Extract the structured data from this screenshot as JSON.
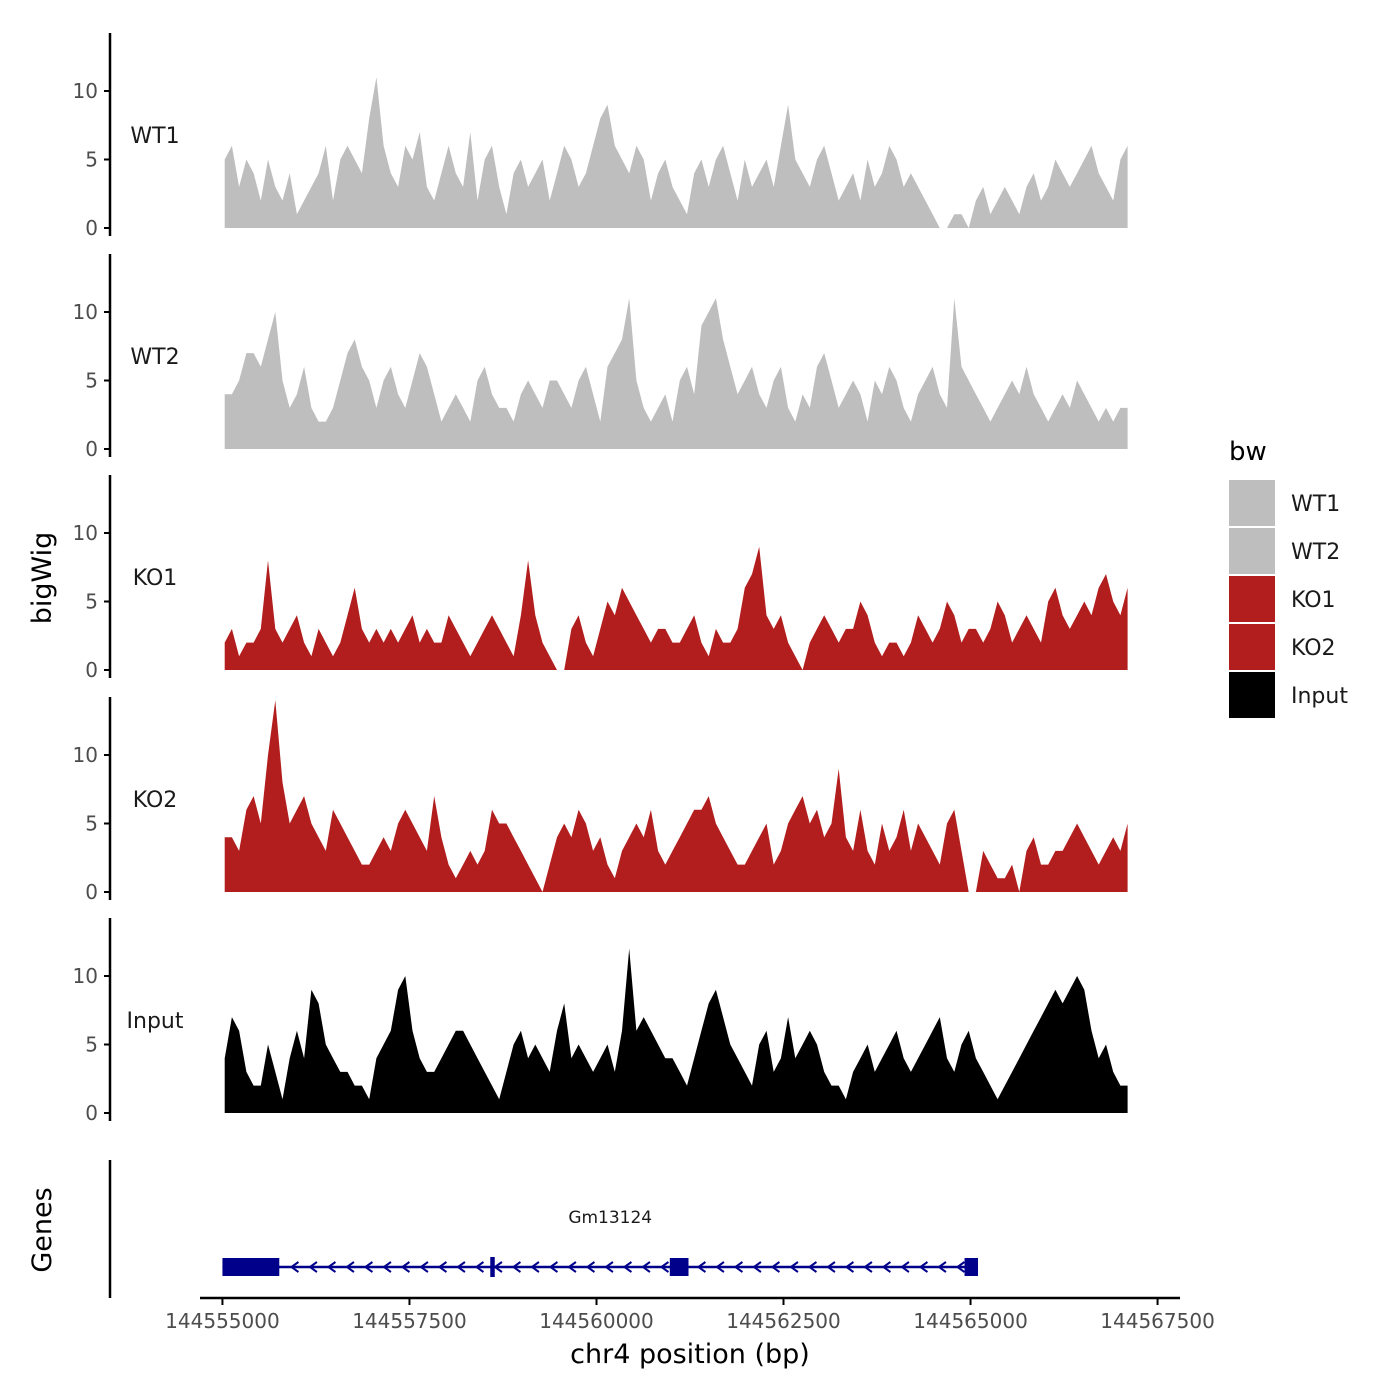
{
  "chart_data": {
    "type": "area",
    "title": "",
    "xlabel": "chr4 position (bp)",
    "ylabel": "bigWig",
    "genes_label": "Genes",
    "chromosome": "chr4",
    "xlim": [
      144554700,
      144567800
    ],
    "ylim": [
      0,
      14.2
    ],
    "x_ticks": [
      144555000,
      144557500,
      144560000,
      144562500,
      144565000,
      144567500
    ],
    "x_tick_labels": [
      "144555000",
      "144557500",
      "144560000",
      "144562500",
      "144565000",
      "144567500"
    ],
    "y_ticks": [
      0,
      5,
      10
    ],
    "y_tick_labels": [
      "0",
      "5",
      "10"
    ],
    "legend": {
      "title": "bw",
      "position": "right",
      "entries": [
        {
          "label": "WT1",
          "color": "#bebebe"
        },
        {
          "label": "WT2",
          "color": "#bebebe"
        },
        {
          "label": "KO1",
          "color": "#b21e1e"
        },
        {
          "label": "KO2",
          "color": "#b21e1e"
        },
        {
          "label": "Input",
          "color": "#000000"
        }
      ]
    },
    "x_start": 144555030,
    "x_end": 144567100,
    "series": [
      {
        "name": "WT1",
        "color": "#bebebe",
        "values": [
          5,
          6,
          3,
          5,
          4,
          2,
          5,
          3,
          2,
          4,
          1,
          2,
          3,
          4,
          6,
          2,
          5,
          6,
          5,
          4,
          8,
          11,
          6,
          4,
          3,
          6,
          5,
          7,
          3,
          2,
          4,
          6,
          4,
          3,
          7,
          2,
          5,
          6,
          3,
          1,
          4,
          5,
          3,
          4,
          5,
          2,
          4,
          6,
          5,
          3,
          4,
          6,
          8,
          9,
          6,
          5,
          4,
          6,
          5,
          2,
          4,
          5,
          3,
          2,
          1,
          4,
          5,
          3,
          5,
          6,
          4,
          2,
          5,
          3,
          4,
          5,
          3,
          6,
          9,
          5,
          4,
          3,
          5,
          6,
          4,
          2,
          3,
          4,
          2,
          5,
          3,
          4,
          6,
          5,
          3,
          4,
          3,
          2,
          1,
          0,
          0,
          1,
          1,
          0,
          2,
          3,
          1,
          2,
          3,
          2,
          1,
          3,
          4,
          2,
          3,
          5,
          4,
          3,
          4,
          5,
          6,
          4,
          3,
          2,
          5,
          6
        ]
      },
      {
        "name": "WT2",
        "color": "#bebebe",
        "values": [
          4,
          4,
          5,
          7,
          7,
          6,
          8,
          10,
          5,
          3,
          4,
          6,
          3,
          2,
          2,
          3,
          5,
          7,
          8,
          6,
          5,
          3,
          5,
          6,
          4,
          3,
          5,
          7,
          6,
          4,
          2,
          3,
          4,
          3,
          2,
          5,
          6,
          4,
          3,
          3,
          2,
          4,
          5,
          4,
          3,
          5,
          5,
          4,
          3,
          5,
          6,
          4,
          2,
          6,
          7,
          8,
          11,
          5,
          3,
          2,
          3,
          4,
          2,
          5,
          6,
          4,
          9,
          10,
          11,
          8,
          6,
          4,
          5,
          6,
          4,
          3,
          5,
          6,
          3,
          2,
          4,
          3,
          6,
          7,
          5,
          3,
          4,
          5,
          4,
          2,
          5,
          4,
          6,
          5,
          3,
          2,
          4,
          5,
          6,
          4,
          3,
          11,
          6,
          5,
          4,
          3,
          2,
          3,
          4,
          5,
          4,
          6,
          4,
          3,
          2,
          3,
          4,
          3,
          5,
          4,
          3,
          2,
          3,
          2,
          3,
          3
        ]
      },
      {
        "name": "KO1",
        "color": "#b21e1e",
        "values": [
          2,
          3,
          1,
          2,
          2,
          3,
          8,
          3,
          2,
          3,
          4,
          2,
          1,
          3,
          2,
          1,
          2,
          4,
          6,
          3,
          2,
          3,
          2,
          3,
          2,
          3,
          4,
          2,
          3,
          2,
          2,
          4,
          3,
          2,
          1,
          2,
          3,
          4,
          3,
          2,
          1,
          4,
          8,
          4,
          2,
          1,
          0,
          0,
          3,
          4,
          2,
          1,
          3,
          5,
          4,
          6,
          5,
          4,
          3,
          2,
          3,
          3,
          2,
          2,
          3,
          4,
          2,
          1,
          3,
          2,
          2,
          3,
          6,
          7,
          9,
          4,
          3,
          4,
          2,
          1,
          0,
          2,
          3,
          4,
          3,
          2,
          3,
          3,
          5,
          4,
          2,
          1,
          2,
          2,
          1,
          2,
          4,
          3,
          2,
          3,
          5,
          4,
          2,
          3,
          3,
          2,
          3,
          5,
          4,
          2,
          3,
          4,
          3,
          2,
          5,
          6,
          4,
          3,
          4,
          5,
          4,
          6,
          7,
          5,
          4,
          6
        ]
      },
      {
        "name": "KO2",
        "color": "#b21e1e",
        "values": [
          4,
          4,
          3,
          6,
          7,
          5,
          10,
          14,
          8,
          5,
          6,
          7,
          5,
          4,
          3,
          6,
          5,
          4,
          3,
          2,
          2,
          3,
          4,
          3,
          5,
          6,
          5,
          4,
          3,
          7,
          4,
          2,
          1,
          2,
          3,
          2,
          3,
          6,
          5,
          5,
          4,
          3,
          2,
          1,
          0,
          2,
          4,
          5,
          4,
          6,
          5,
          3,
          4,
          2,
          1,
          3,
          4,
          5,
          4,
          6,
          3,
          2,
          3,
          4,
          5,
          6,
          6,
          7,
          5,
          4,
          3,
          2,
          2,
          3,
          4,
          5,
          2,
          3,
          5,
          6,
          7,
          5,
          6,
          4,
          5,
          9,
          4,
          3,
          6,
          3,
          2,
          5,
          3,
          4,
          6,
          3,
          5,
          4,
          3,
          2,
          5,
          6,
          3,
          0,
          0,
          3,
          2,
          1,
          1,
          2,
          0,
          3,
          4,
          2,
          2,
          3,
          3,
          4,
          5,
          4,
          3,
          2,
          3,
          4,
          3,
          5
        ]
      },
      {
        "name": "Input",
        "color": "#000000",
        "values": [
          4,
          7,
          6,
          3,
          2,
          2,
          5,
          3,
          1,
          4,
          6,
          4,
          9,
          8,
          5,
          4,
          3,
          3,
          2,
          2,
          1,
          4,
          5,
          6,
          9,
          10,
          6,
          4,
          3,
          3,
          4,
          5,
          6,
          6,
          5,
          4,
          3,
          2,
          1,
          3,
          5,
          6,
          4,
          5,
          4,
          3,
          6,
          8,
          4,
          5,
          4,
          3,
          4,
          5,
          3,
          6,
          12,
          6,
          7,
          6,
          5,
          4,
          4,
          3,
          2,
          4,
          6,
          8,
          9,
          7,
          5,
          4,
          3,
          2,
          5,
          6,
          3,
          4,
          7,
          4,
          5,
          6,
          5,
          3,
          2,
          2,
          1,
          3,
          4,
          5,
          3,
          4,
          5,
          6,
          4,
          3,
          4,
          5,
          6,
          7,
          4,
          3,
          5,
          6,
          4,
          3,
          2,
          1,
          2,
          3,
          4,
          5,
          6,
          7,
          8,
          9,
          8,
          9,
          10,
          9,
          6,
          4,
          5,
          3,
          2,
          2
        ]
      }
    ],
    "gene": {
      "name": "Gm13124",
      "strand": "-",
      "start": 144555000,
      "end": 144565100,
      "color": "#00008b",
      "exons": [
        {
          "start": 144555000,
          "end": 144555760
        },
        {
          "start": 144558580,
          "end": 144558640
        },
        {
          "start": 144560980,
          "end": 144561230
        },
        {
          "start": 144564920,
          "end": 144565100
        }
      ]
    }
  }
}
